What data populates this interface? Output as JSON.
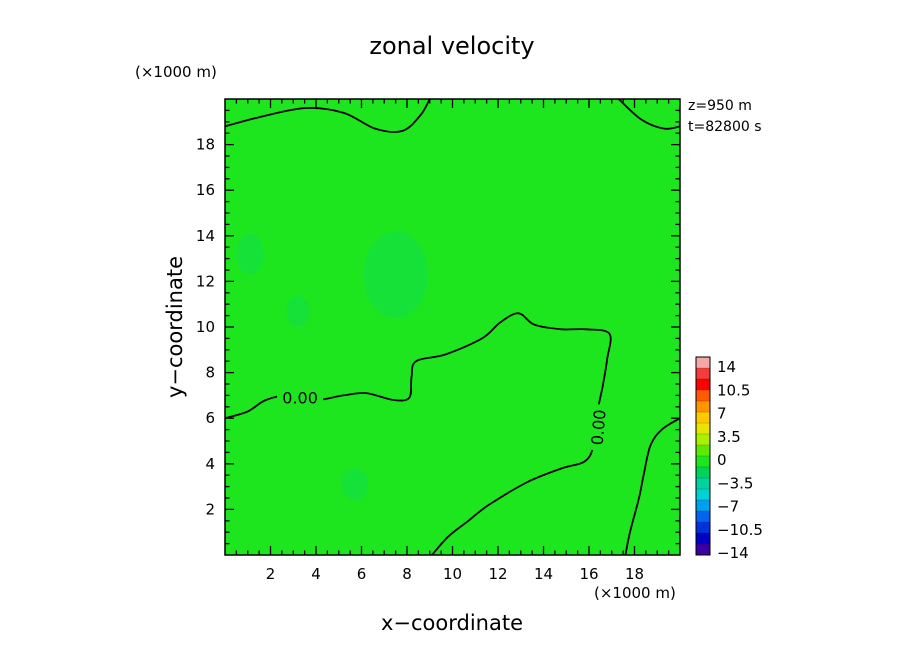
{
  "chart_data": {
    "type": "heatmap",
    "title": "zonal velocity",
    "xlabel": "x−coordinate",
    "ylabel": "y−coordinate",
    "x_unit": "(×1000 m)",
    "y_unit": "(×1000 m)",
    "xlim": [
      0,
      20
    ],
    "ylim": [
      0,
      20
    ],
    "x_ticks": [
      2,
      4,
      6,
      8,
      10,
      12,
      14,
      16,
      18
    ],
    "y_ticks": [
      2,
      4,
      6,
      8,
      10,
      12,
      14,
      16,
      18
    ],
    "info_lines": [
      "z=950  m",
      "t=82800  s"
    ],
    "field_color": "#1ee61e",
    "contour_level": 0,
    "contour_labels": [
      {
        "text": "0.00",
        "x": 3.3,
        "y": 6.9,
        "angle": 0
      },
      {
        "text": "0.00",
        "x": 16.4,
        "y": 5.6,
        "angle": -85
      }
    ],
    "contours": [
      {
        "level": 0,
        "points": [
          [
            0,
            18.8
          ],
          [
            1.5,
            19.2
          ],
          [
            3.5,
            19.6
          ],
          [
            5.2,
            19.4
          ],
          [
            6.6,
            18.7
          ],
          [
            7.8,
            18.6
          ],
          [
            8.6,
            19.3
          ],
          [
            9,
            20
          ]
        ]
      },
      {
        "level": 0,
        "points": [
          [
            17.3,
            20
          ],
          [
            18.3,
            19.1
          ],
          [
            19.3,
            18.7
          ],
          [
            20,
            18.8
          ]
        ]
      },
      {
        "level": 0,
        "points": [
          [
            0,
            6
          ],
          [
            1,
            6.3
          ],
          [
            1.8,
            6.8
          ],
          [
            2.8,
            7
          ],
          [
            4,
            6.8
          ],
          [
            5.2,
            7
          ],
          [
            6.2,
            7.1
          ],
          [
            7.4,
            6.8
          ],
          [
            8.1,
            6.9
          ],
          [
            8.2,
            7.8
          ],
          [
            8.4,
            8.5
          ],
          [
            9.7,
            8.8
          ],
          [
            11.3,
            9.5
          ],
          [
            12.1,
            10.2
          ],
          [
            12.9,
            10.6
          ],
          [
            13.6,
            10.1
          ],
          [
            14.8,
            9.9
          ],
          [
            15.9,
            9.9
          ],
          [
            16.9,
            9.7
          ],
          [
            16.8,
            8.6
          ],
          [
            16.6,
            7.4
          ],
          [
            16.4,
            6.4
          ],
          [
            16.2,
            4.8
          ],
          [
            15.8,
            4.1
          ],
          [
            14.8,
            3.8
          ],
          [
            13.3,
            3.2
          ],
          [
            11.6,
            2.2
          ],
          [
            10.7,
            1.5
          ],
          [
            9.8,
            0.8
          ],
          [
            9.1,
            0
          ]
        ]
      },
      {
        "level": 0,
        "points": [
          [
            17.6,
            0
          ],
          [
            17.8,
            1
          ],
          [
            18.2,
            2.5
          ],
          [
            18.4,
            3.5
          ],
          [
            18.7,
            4.8
          ],
          [
            19.2,
            5.5
          ],
          [
            20,
            6
          ]
        ]
      }
    ],
    "weak_negative_patches": [
      {
        "x": 7.5,
        "y": 12.3,
        "rx": 1.4,
        "ry": 1.9,
        "value": -0.4
      },
      {
        "x": 1.1,
        "y": 13.2,
        "rx": 0.6,
        "ry": 0.9,
        "value": -0.3
      },
      {
        "x": 3.2,
        "y": 10.7,
        "rx": 0.5,
        "ry": 0.7,
        "value": -0.2
      },
      {
        "x": 5.7,
        "y": 3.1,
        "rx": 0.6,
        "ry": 0.7,
        "value": -0.3
      }
    ],
    "colorbar": {
      "labels": [
        "14",
        "10.5",
        "7",
        "3.5",
        "0",
        "−3.5",
        "−7",
        "−10.5",
        "−14"
      ],
      "colors_top_to_bottom": [
        "#f5a8a8",
        "#f53c3c",
        "#ff0000",
        "#ff5a00",
        "#ff9600",
        "#ffc800",
        "#e6e600",
        "#aaf000",
        "#5aeb00",
        "#1ee61e",
        "#00d25a",
        "#00d2a0",
        "#00d2d2",
        "#00a0f0",
        "#0064f0",
        "#0032dc",
        "#0000c8",
        "#3c00a0"
      ]
    },
    "grid": false
  }
}
